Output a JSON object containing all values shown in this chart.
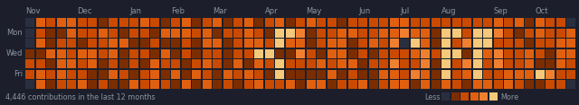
{
  "background_color": "#1c1f2b",
  "cell_colors": [
    "#2a2f3f",
    "#7b2d00",
    "#c94a00",
    "#e06010",
    "#f08030",
    "#f5c87a",
    "#f0e0b0"
  ],
  "months": [
    "Nov",
    "Dec",
    "Jan",
    "Feb",
    "Mar",
    "Apr",
    "May",
    "Jun",
    "Jul",
    "Aug",
    "Sep",
    "Oct"
  ],
  "month_week_offsets": [
    0,
    5,
    10,
    14,
    18,
    23,
    27,
    32,
    36,
    40,
    45,
    49
  ],
  "day_labels": [
    "Mon",
    "Wed",
    "Fri"
  ],
  "day_label_rows": [
    1,
    3,
    5
  ],
  "footer_text": "4,446 contributions in the last 12 months",
  "legend_label_less": "Less",
  "legend_label_more": "More",
  "num_weeks": 53,
  "num_days": 7,
  "label_color": "#8b949e",
  "label_fontsize": 6.0,
  "footer_fontsize": 5.8,
  "legend_colors": [
    "#2a2f3f",
    "#7b2d00",
    "#c94a00",
    "#e06010",
    "#f08030",
    "#f5c87a"
  ]
}
